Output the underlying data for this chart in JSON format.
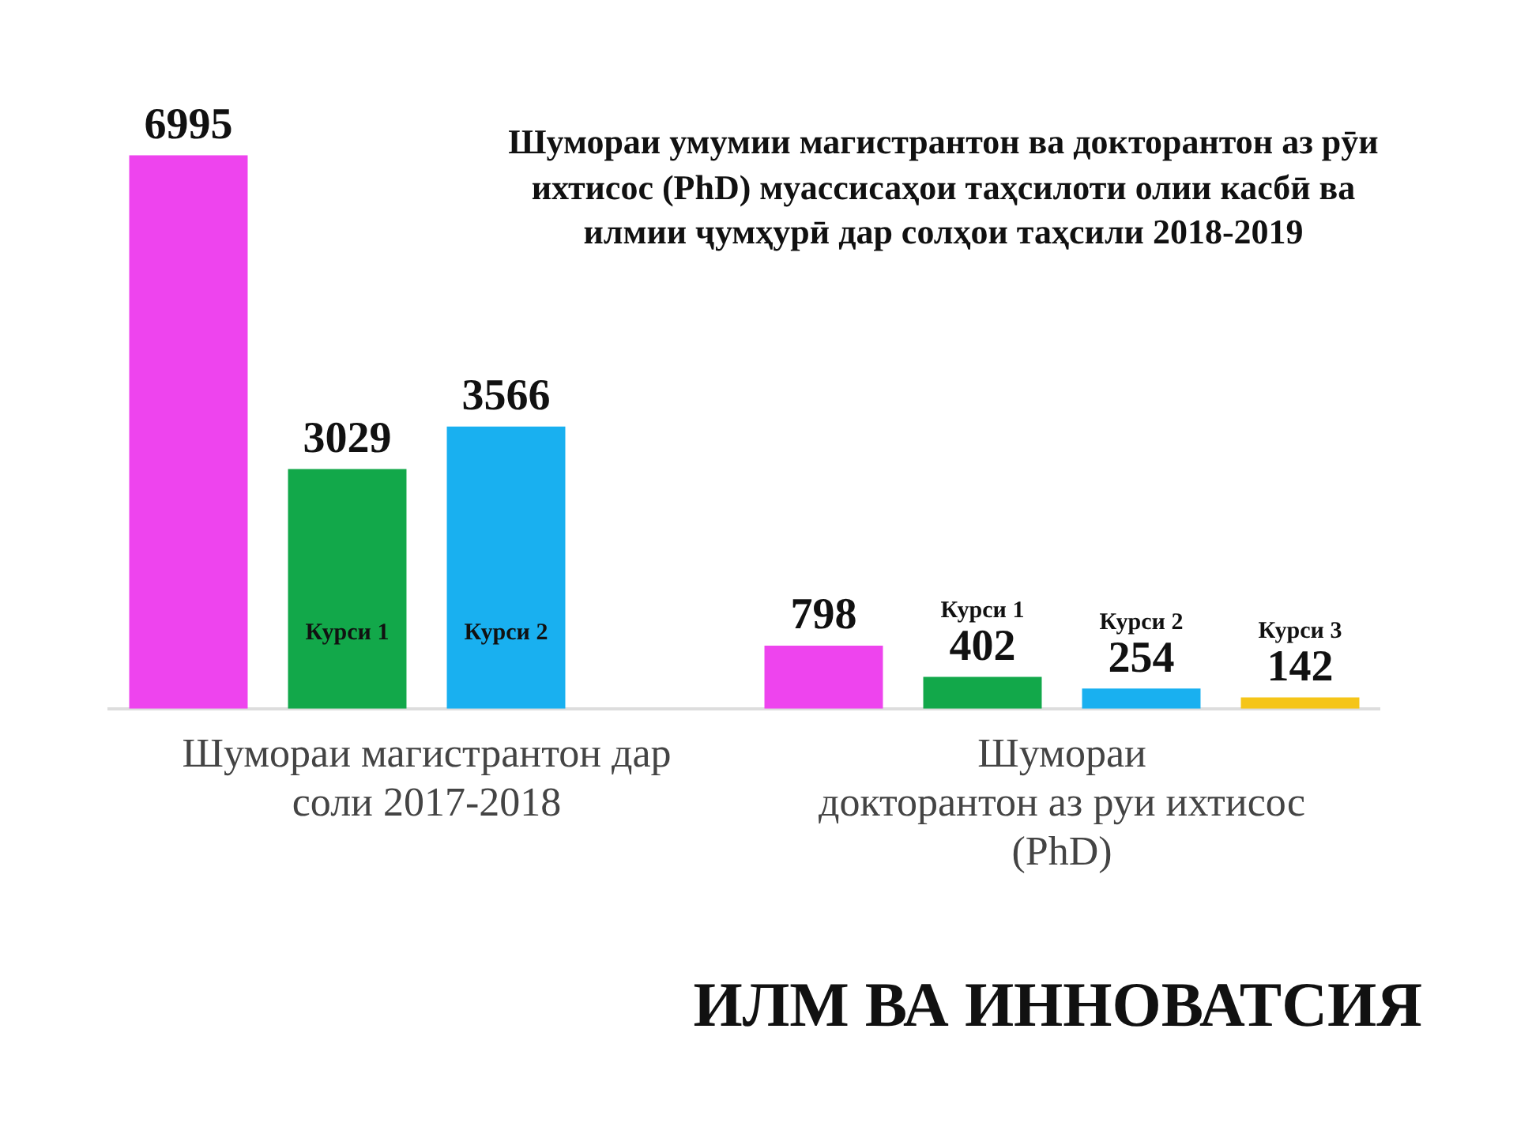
{
  "chart_data": {
    "type": "bar",
    "title": "Шумораи умумии магистрантон ва докторантон аз рӯи\nихтисос (PhD)  муассисаҳои таҳсилоти олии касбӣ ва\nилмии  ҷумҳурӣ  дар солҳои таҳсили  2018-2019",
    "categories": [
      "Шумораи магистрантон дар\nсоли 2017-2018",
      "Шумораи\nдокторантон аз руи ихтисос\n(PhD)"
    ],
    "series": [
      {
        "color": "#ee44ee",
        "values": [
          6995,
          798
        ]
      },
      {
        "name": "Курси 1",
        "color": "#12a84a",
        "values": [
          3029,
          402
        ]
      },
      {
        "name": "Курси 2",
        "color": "#19b0f0",
        "values": [
          3566,
          254
        ]
      },
      {
        "name": "Курси 3",
        "color": "#f5c518",
        "values": [
          null,
          142
        ]
      }
    ],
    "data_labels": true,
    "grid": false,
    "legend": false,
    "annotations": [
      "ИЛМ ВА ИННОВАТСИЯ"
    ]
  }
}
